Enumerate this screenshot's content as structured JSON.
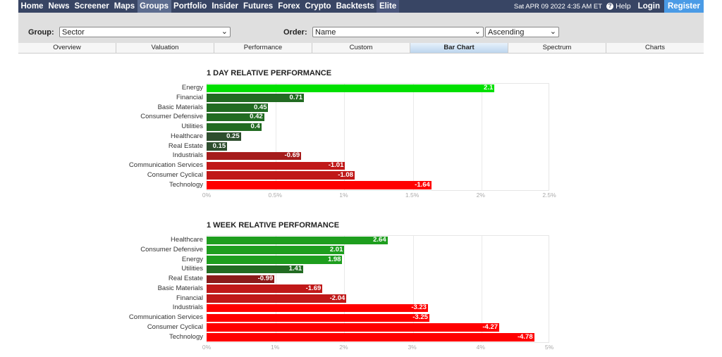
{
  "nav": {
    "items": [
      "Home",
      "News",
      "Screener",
      "Maps",
      "Groups",
      "Portfolio",
      "Insider",
      "Futures",
      "Forex",
      "Crypto",
      "Backtests",
      "Elite"
    ],
    "active": "Groups",
    "date": "Sat APR 09 2022 4:35 AM ET",
    "help": "Help",
    "login": "Login",
    "register": "Register"
  },
  "filters": {
    "group_label": "Group:",
    "group_value": "Sector",
    "order_label": "Order:",
    "order_value": "Name",
    "direction_value": "Ascending"
  },
  "tabs": [
    "Overview",
    "Valuation",
    "Performance",
    "Custom",
    "Bar Chart",
    "Spectrum",
    "Charts"
  ],
  "active_tab": "Bar Chart",
  "colors": {
    "nav_bg": "#384564",
    "register_bg": "#4a9be6",
    "pos_strong": "#00e000",
    "pos_mid": "#1e9e1e",
    "pos_weak": "#2e4e2e",
    "neg_weak": "#8b1a1a",
    "neg_mid": "#c01818",
    "neg_strong": "#ff0000"
  },
  "chart_data": [
    {
      "type": "bar",
      "orientation": "horizontal",
      "title": "1 DAY RELATIVE PERFORMANCE",
      "categories": [
        "Energy",
        "Financial",
        "Basic Materials",
        "Consumer Defensive",
        "Utilities",
        "Healthcare",
        "Real Estate",
        "Industrials",
        "Communication Services",
        "Consumer Cyclical",
        "Technology"
      ],
      "values": [
        2.1,
        0.71,
        0.45,
        0.42,
        0.4,
        0.25,
        0.15,
        -0.69,
        -1.01,
        -1.08,
        -1.64
      ],
      "value_labels": [
        "2.1",
        "0.71",
        "0.45",
        "0.42",
        "0.4",
        "0.25",
        "0.15",
        "-0.69",
        "-1.01",
        "-1.08",
        "-1.64"
      ],
      "xticks": [
        "0%",
        "0.5%",
        "1%",
        "1.5%",
        "2%",
        "2.5%"
      ],
      "xlim": [
        0,
        2.5
      ],
      "grid": true
    },
    {
      "type": "bar",
      "orientation": "horizontal",
      "title": "1 WEEK RELATIVE PERFORMANCE",
      "categories": [
        "Healthcare",
        "Consumer Defensive",
        "Energy",
        "Utilities",
        "Real Estate",
        "Basic Materials",
        "Financial",
        "Industrials",
        "Communication Services",
        "Consumer Cyclical",
        "Technology"
      ],
      "values": [
        2.64,
        2.01,
        1.98,
        1.41,
        -0.99,
        -1.69,
        -2.04,
        -3.23,
        -3.25,
        -4.27,
        -4.78
      ],
      "value_labels": [
        "2.64",
        "2.01",
        "1.98",
        "1.41",
        "-0.99",
        "-1.69",
        "-2.04",
        "-3.23",
        "-3.25",
        "-4.27",
        "-4.78"
      ],
      "xticks": [
        "0%",
        "1%",
        "2%",
        "3%",
        "4%",
        "5%"
      ],
      "xlim": [
        0,
        5
      ],
      "grid": true
    }
  ]
}
